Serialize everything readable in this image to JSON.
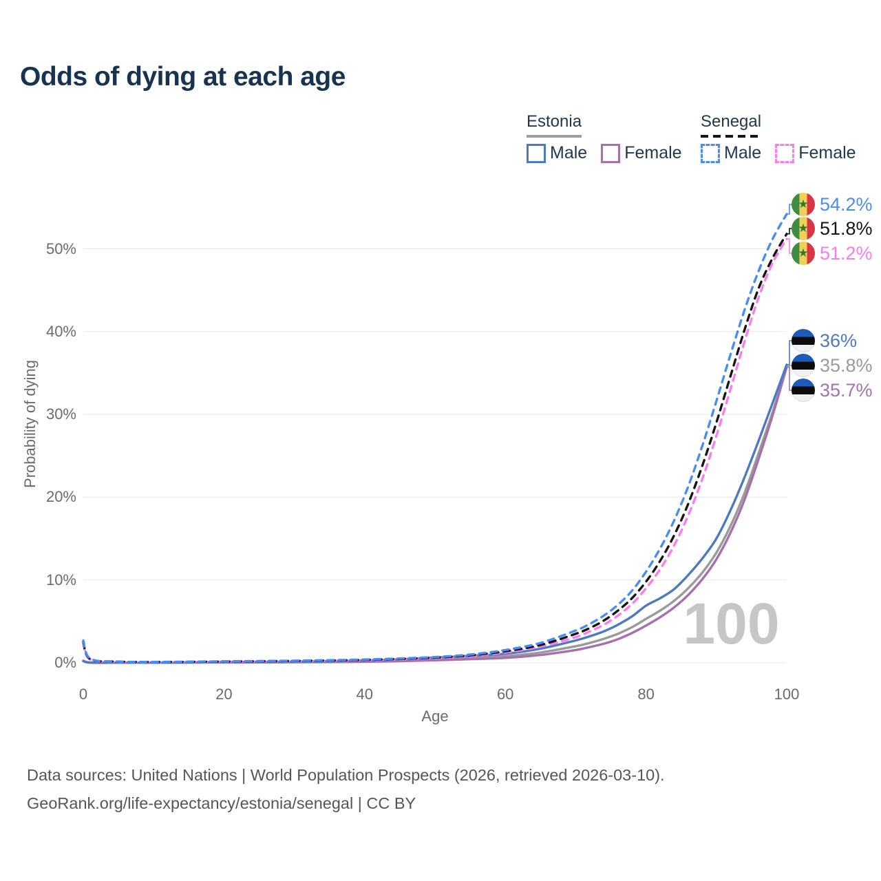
{
  "title": "Odds of dying at each age",
  "watermark": "100",
  "legend": {
    "estonia": {
      "label": "Estonia",
      "male": "Male",
      "female": "Female"
    },
    "senegal": {
      "label": "Senegal",
      "male": "Male",
      "female": "Female"
    }
  },
  "footer": {
    "line1": "Data sources: United Nations | World Population Prospects (2026, retrieved 2026-03-10).",
    "line2": "GeoRank.org/life-expectancy/estonia/senegal | CC BY"
  },
  "colors": {
    "title_text": "#17334f",
    "legend_text": "#22384f",
    "axis_text": "#6b6b6b",
    "gridline": "#e8e8e8",
    "watermark": "#c6c6c6",
    "footer_text": "#565656"
  },
  "flags": {
    "estonia": {
      "blue": "#1d5cb8",
      "black": "#0c0c0c",
      "white": "#f0f0f2"
    },
    "senegal": {
      "green": "#418c40",
      "yellow": "#f0d158",
      "red": "#d93545",
      "star": "#2f7a33"
    }
  },
  "chart_data": {
    "type": "line",
    "title": "Odds of dying at each age",
    "xlabel": "Age",
    "ylabel": "Probability of dying",
    "xlim": [
      0,
      100
    ],
    "ylim": [
      0,
      56
    ],
    "grid": "horizontal",
    "legend_position": "top-right",
    "xticks": [
      0,
      20,
      40,
      60,
      80,
      100
    ],
    "xtick_labels": [
      "0",
      "20",
      "40",
      "60",
      "80",
      "100"
    ],
    "yticks": [
      0,
      10,
      20,
      30,
      40,
      50
    ],
    "ytick_labels": [
      "0%",
      "10%",
      "20%",
      "30%",
      "40%",
      "50%"
    ],
    "x": [
      0,
      1,
      5,
      10,
      15,
      20,
      25,
      30,
      35,
      40,
      45,
      50,
      55,
      60,
      65,
      70,
      72,
      74,
      76,
      78,
      80,
      82,
      84,
      86,
      88,
      90,
      92,
      94,
      96,
      98,
      100
    ],
    "series": [
      {
        "id": "estonia_total",
        "name": "Estonia",
        "country": "Estonia",
        "sex": "Both",
        "color": "#9a9a9a",
        "dash": "solid",
        "flag": "estonia",
        "end_label": "35.8%",
        "values": [
          0.22,
          0.025,
          0.018,
          0.018,
          0.04,
          0.07,
          0.085,
          0.1,
          0.14,
          0.2,
          0.3,
          0.45,
          0.62,
          0.8,
          1.25,
          2.0,
          2.4,
          2.9,
          3.5,
          4.3,
          5.3,
          6.3,
          7.5,
          9.0,
          10.9,
          13.3,
          16.5,
          20.5,
          25.3,
          30.3,
          35.8
        ]
      },
      {
        "id": "estonia_female",
        "name": "Estonia Female",
        "country": "Estonia",
        "sex": "Female",
        "color": "#a76fae",
        "dash": "solid",
        "flag": "estonia",
        "end_label": "35.7%",
        "values": [
          0.2,
          0.02,
          0.015,
          0.015,
          0.03,
          0.04,
          0.05,
          0.07,
          0.09,
          0.13,
          0.2,
          0.31,
          0.44,
          0.6,
          0.95,
          1.55,
          1.9,
          2.3,
          2.85,
          3.6,
          4.5,
          5.5,
          6.7,
          8.2,
          10.1,
          12.5,
          15.7,
          19.7,
          24.6,
          29.9,
          35.7
        ]
      },
      {
        "id": "estonia_male",
        "name": "Estonia Male",
        "country": "Estonia",
        "sex": "Male",
        "color": "#4d79c2",
        "dash": "solid",
        "flag": "estonia",
        "end_label": "36%",
        "values": [
          0.25,
          0.03,
          0.02,
          0.02,
          0.05,
          0.1,
          0.12,
          0.15,
          0.2,
          0.28,
          0.42,
          0.62,
          0.85,
          1.1,
          1.7,
          2.7,
          3.2,
          3.8,
          4.6,
          5.6,
          6.9,
          7.8,
          8.9,
          10.6,
          12.6,
          15.0,
          18.4,
          22.4,
          26.8,
          31.4,
          36.0
        ]
      },
      {
        "id": "senegal_female",
        "name": "Senegal Female",
        "country": "Senegal",
        "sex": "Female",
        "color": "#fc7bef",
        "dash": "dashed",
        "flag": "senegal",
        "end_label": "51.2%",
        "values": [
          2.3,
          0.4,
          0.12,
          0.09,
          0.1,
          0.13,
          0.16,
          0.19,
          0.24,
          0.31,
          0.41,
          0.56,
          0.8,
          1.25,
          1.95,
          3.1,
          3.8,
          4.6,
          5.7,
          7.1,
          9.0,
          11.3,
          14.2,
          17.8,
          22.2,
          27.4,
          33.0,
          38.8,
          44.1,
          48.3,
          51.2
        ]
      },
      {
        "id": "senegal_total",
        "name": "Senegal",
        "country": "Senegal",
        "sex": "Both",
        "color": "#161616",
        "dash": "dashed",
        "flag": "senegal",
        "end_label": "51.8%",
        "values": [
          2.5,
          0.45,
          0.14,
          0.1,
          0.12,
          0.155,
          0.19,
          0.23,
          0.28,
          0.36,
          0.47,
          0.63,
          0.9,
          1.4,
          2.15,
          3.5,
          4.2,
          5.1,
          6.3,
          7.8,
          9.8,
          12.3,
          15.4,
          19.2,
          23.8,
          29.0,
          34.6,
          40.2,
          45.2,
          48.9,
          51.8
        ]
      },
      {
        "id": "senegal_male",
        "name": "Senegal Male",
        "country": "Senegal",
        "sex": "Male",
        "color": "#4a8df2",
        "dash": "dashed",
        "flag": "senegal",
        "end_label": "54.2%",
        "values": [
          2.7,
          0.5,
          0.15,
          0.11,
          0.14,
          0.18,
          0.22,
          0.26,
          0.32,
          0.4,
          0.52,
          0.7,
          1.0,
          1.55,
          2.4,
          3.9,
          4.7,
          5.7,
          7.0,
          8.7,
          11.0,
          13.8,
          17.2,
          21.3,
          26.2,
          31.6,
          37.2,
          42.6,
          47.3,
          51.2,
          54.2
        ]
      }
    ]
  }
}
